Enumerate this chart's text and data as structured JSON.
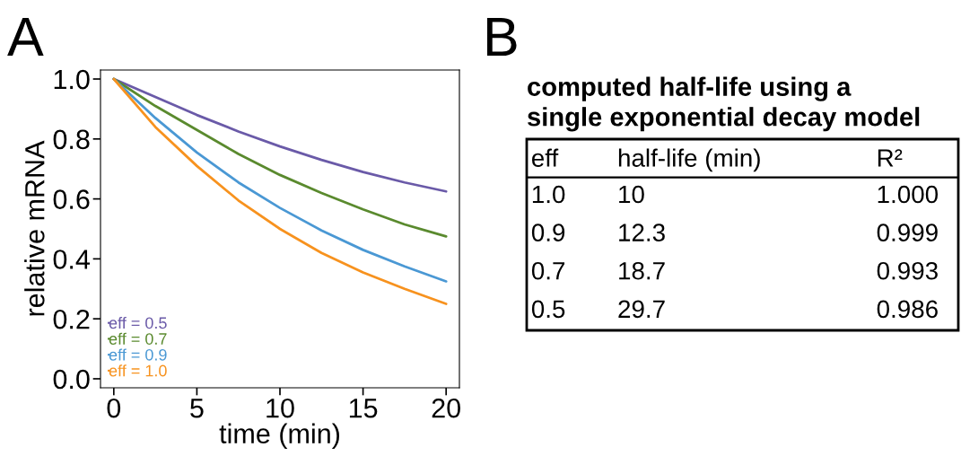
{
  "chart_data": [
    {
      "type": "line",
      "xlabel": "time (min)",
      "ylabel": "relative mRNA",
      "annotations": [
        "A"
      ],
      "x": [
        0,
        2.5,
        5,
        7.5,
        10,
        12.5,
        15,
        17.5,
        20
      ],
      "series": [
        {
          "name": "eff = 0.5",
          "color": "#6a5aa8",
          "values": [
            1,
            0.94,
            0.88,
            0.825,
            0.775,
            0.73,
            0.69,
            0.655,
            0.625
          ]
        },
        {
          "name": "eff = 0.7",
          "color": "#5a8a2e",
          "values": [
            1,
            0.91,
            0.83,
            0.75,
            0.68,
            0.62,
            0.565,
            0.515,
            0.475
          ]
        },
        {
          "name": "eff = 0.9",
          "color": "#4a98d4",
          "values": [
            1,
            0.87,
            0.755,
            0.655,
            0.57,
            0.495,
            0.43,
            0.375,
            0.325
          ]
        },
        {
          "name": "eff = 1.0",
          "color": "#f7921e",
          "values": [
            1,
            0.84,
            0.71,
            0.595,
            0.5,
            0.42,
            0.355,
            0.3,
            0.25
          ]
        }
      ],
      "xlim": [
        -0.8,
        20.8
      ],
      "ylim": [
        -0.03,
        1.03
      ],
      "xticks": [
        0,
        5,
        10,
        15,
        20
      ],
      "yticks": [
        {
          "value": 0,
          "label": "0.0"
        },
        {
          "value": 0.2,
          "label": "0.2"
        },
        {
          "value": 0.4,
          "label": "0.4"
        },
        {
          "value": 0.6,
          "label": "0.6"
        },
        {
          "value": 0.8,
          "label": "0.8"
        },
        {
          "value": 1,
          "label": "1.0"
        }
      ],
      "legend": "bottom left",
      "grid": false
    },
    {
      "type": "other",
      "title": "computed half-life using a\nsingle exponential decay model",
      "annotations": [
        "B"
      ],
      "categories": [
        "eff",
        "half-life (min)",
        "R²"
      ],
      "cell_labels": [
        [
          "1.0",
          "10",
          "1.000"
        ],
        [
          "0.9",
          "12.3",
          "0.999"
        ],
        [
          "0.7",
          "18.7",
          "0.993"
        ],
        [
          "0.5",
          "29.7",
          "0.986"
        ]
      ]
    }
  ]
}
